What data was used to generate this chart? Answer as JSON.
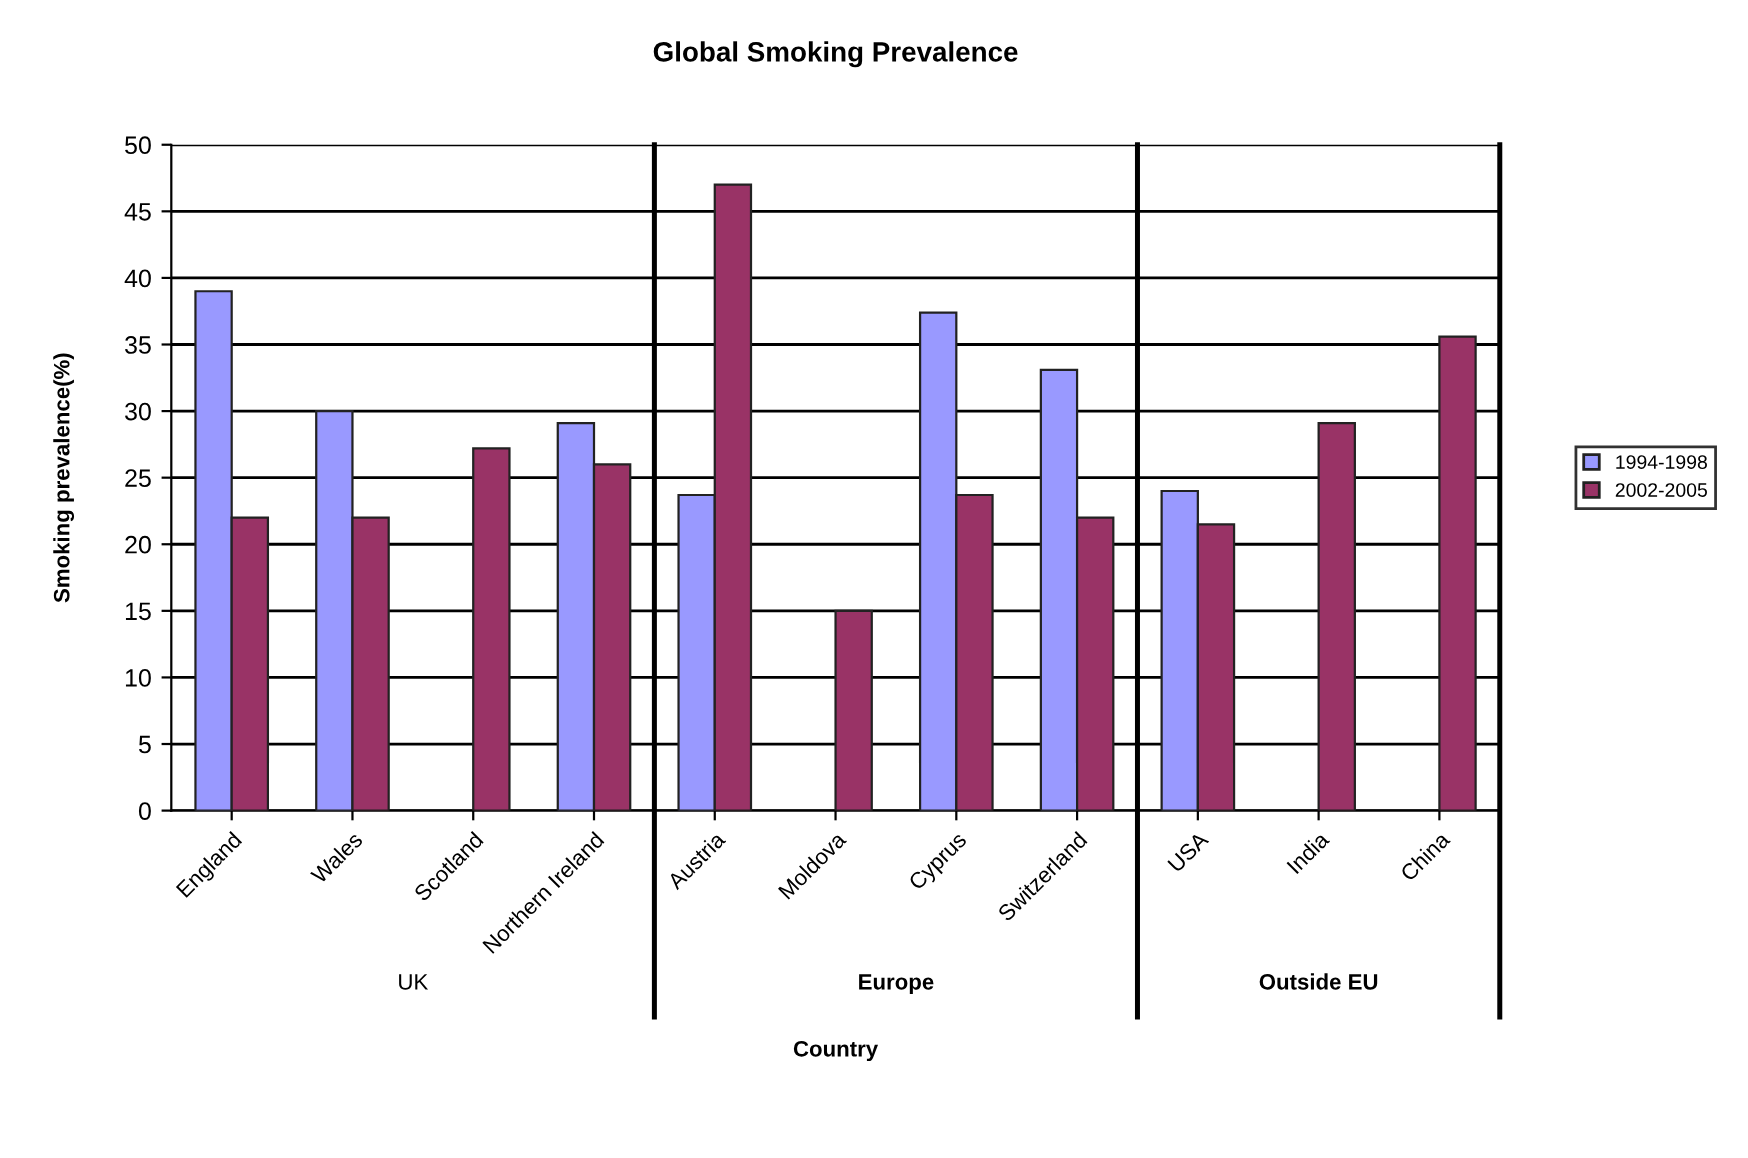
{
  "chart_data": {
    "type": "bar",
    "title": "Global Smoking Prevalence",
    "xlabel": "Country",
    "ylabel": "Smoking prevalence(%)",
    "categories": [
      "England",
      "Wales",
      "Scotland",
      "Northern Ireland",
      "Austria",
      "Moldova",
      "Cyprus",
      "Switzerland",
      "USA",
      "India",
      "China"
    ],
    "series": [
      {
        "name": "1994-1998",
        "color": "#9999ff",
        "values": [
          39,
          30,
          null,
          29.1,
          23.7,
          null,
          37.4,
          33.1,
          24.0,
          null,
          null
        ]
      },
      {
        "name": "2002-2005",
        "color": "#993366",
        "values": [
          22,
          22,
          27.2,
          26.0,
          47.0,
          15,
          23.7,
          22.0,
          21.5,
          29.1,
          35.6
        ]
      }
    ],
    "ylim": [
      0,
      50
    ],
    "yticks": [
      0,
      5,
      10,
      15,
      20,
      25,
      30,
      35,
      40,
      45,
      50
    ],
    "grid": "y",
    "legend": "right",
    "annotations": [
      "UK",
      "Europe",
      "Outside EU"
    ]
  }
}
